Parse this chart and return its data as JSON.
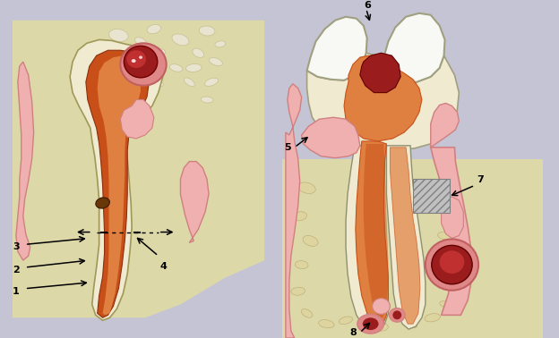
{
  "bg": "#c4c4d4",
  "lpbg": "#ddd8a8",
  "rpbg": "#ddd8a8",
  "pink": "#f0b0b0",
  "dpink": "#d08080",
  "orange": "#c85018",
  "orange_light": "#e08040",
  "cream": "#f0ead0",
  "white": "#f8f8f4",
  "dred": "#9b1c1c",
  "dred2": "#c03030",
  "bone": "#c8bc88",
  "brown": "#6a3808",
  "gray": "#aaaaaa"
}
